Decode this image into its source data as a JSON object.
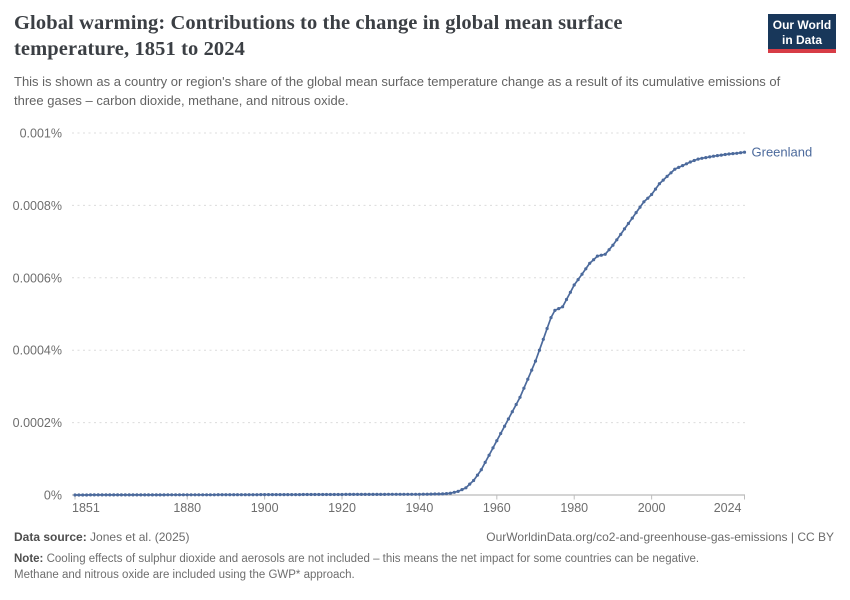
{
  "header": {
    "title": "Global warming: Contributions to the change in global mean surface temperature, 1851 to 2024",
    "subtitle": "This is shown as a country or region's share of the global mean surface temperature change as a result of its cumulative emissions of three gases – carbon dioxide, methane, and nitrous oxide.",
    "logo": {
      "line1": "Our World",
      "line2": "in Data",
      "bg_color": "#18375a",
      "accent_color": "#d73c46"
    }
  },
  "chart_data": {
    "type": "line",
    "title": "Global warming: Contributions to the change in global mean surface temperature, 1851 to 2024",
    "xlabel": "",
    "ylabel": "",
    "unit": "%",
    "grid": "dashed-horizontal",
    "legend": "end-of-line-label",
    "x": {
      "range": [
        1851,
        2024
      ],
      "ticks": [
        1851,
        1880,
        1900,
        1920,
        1940,
        1960,
        1980,
        2000,
        2024
      ]
    },
    "y": {
      "range": [
        0,
        0.001
      ],
      "ticks": [
        {
          "v": 0,
          "label": "0%"
        },
        {
          "v": 0.0002,
          "label": "0.0002%"
        },
        {
          "v": 0.0004,
          "label": "0.0004%"
        },
        {
          "v": 0.0006,
          "label": "0.0006%"
        },
        {
          "v": 0.0008,
          "label": "0.0008%"
        },
        {
          "v": 0.001,
          "label": "0.001%"
        }
      ]
    },
    "series": [
      {
        "name": "Greenland",
        "color": "#4c6a9c",
        "marker": "circle",
        "points": [
          [
            1851,
            1e-07
          ],
          [
            1860,
            2e-07
          ],
          [
            1880,
            5e-07
          ],
          [
            1900,
            1e-06
          ],
          [
            1920,
            1.5e-06
          ],
          [
            1940,
            2e-06
          ],
          [
            1946,
            3e-06
          ],
          [
            1948,
            5e-06
          ],
          [
            1950,
            1e-05
          ],
          [
            1952,
            2e-05
          ],
          [
            1954,
            4e-05
          ],
          [
            1956,
            7e-05
          ],
          [
            1958,
            0.00011
          ],
          [
            1960,
            0.00015
          ],
          [
            1962,
            0.00019
          ],
          [
            1964,
            0.00023
          ],
          [
            1966,
            0.00027
          ],
          [
            1968,
            0.00032
          ],
          [
            1970,
            0.00037
          ],
          [
            1972,
            0.00043
          ],
          [
            1974,
            0.00049
          ],
          [
            1975,
            0.00051
          ],
          [
            1977,
            0.00052
          ],
          [
            1978,
            0.00054
          ],
          [
            1980,
            0.00058
          ],
          [
            1982,
            0.00061
          ],
          [
            1984,
            0.00064
          ],
          [
            1986,
            0.00066
          ],
          [
            1988,
            0.000665
          ],
          [
            1990,
            0.00069
          ],
          [
            1992,
            0.00072
          ],
          [
            1994,
            0.00075
          ],
          [
            1996,
            0.00078
          ],
          [
            1998,
            0.00081
          ],
          [
            2000,
            0.00083
          ],
          [
            2002,
            0.00086
          ],
          [
            2004,
            0.00088
          ],
          [
            2006,
            0.0009
          ],
          [
            2008,
            0.00091
          ],
          [
            2010,
            0.00092
          ],
          [
            2012,
            0.000928
          ],
          [
            2014,
            0.000932
          ],
          [
            2016,
            0.000936
          ],
          [
            2018,
            0.000939
          ],
          [
            2020,
            0.000942
          ],
          [
            2022,
            0.000944
          ],
          [
            2024,
            0.000947
          ]
        ]
      }
    ]
  },
  "footer": {
    "source_label": "Data source:",
    "source": "Jones et al. (2025)",
    "link": "OurWorldinData.org/co2-and-greenhouse-gas-emissions | CC BY",
    "note_label": "Note:",
    "note": "Cooling effects of sulphur dioxide and aerosols are not included – this means the net impact for some countries can be negative. Methane and nitrous oxide are included using the GWP* approach."
  }
}
